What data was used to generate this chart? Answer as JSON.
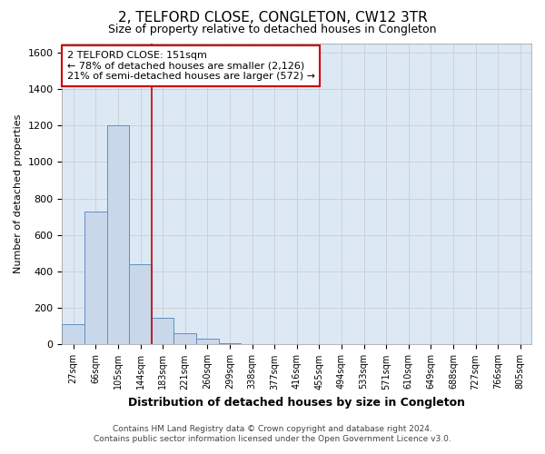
{
  "title": "2, TELFORD CLOSE, CONGLETON, CW12 3TR",
  "subtitle": "Size of property relative to detached houses in Congleton",
  "xlabel": "Distribution of detached houses by size in Congleton",
  "ylabel": "Number of detached properties",
  "footer_line1": "Contains HM Land Registry data © Crown copyright and database right 2024.",
  "footer_line2": "Contains public sector information licensed under the Open Government Licence v3.0.",
  "bin_labels": [
    "27sqm",
    "66sqm",
    "105sqm",
    "144sqm",
    "183sqm",
    "221sqm",
    "260sqm",
    "299sqm",
    "338sqm",
    "377sqm",
    "416sqm",
    "455sqm",
    "494sqm",
    "533sqm",
    "571sqm",
    "610sqm",
    "649sqm",
    "688sqm",
    "727sqm",
    "766sqm",
    "805sqm"
  ],
  "bar_values": [
    110,
    730,
    1200,
    440,
    145,
    60,
    30,
    5,
    0,
    0,
    0,
    0,
    0,
    0,
    0,
    0,
    0,
    0,
    0,
    0,
    0
  ],
  "bar_color": "#c8d8ea",
  "bar_edge_color": "#6090c0",
  "ylim": [
    0,
    1650
  ],
  "yticks": [
    0,
    200,
    400,
    600,
    800,
    1000,
    1200,
    1400,
    1600
  ],
  "vline_x": 3.5,
  "annotation_line1": "2 TELFORD CLOSE: 151sqm",
  "annotation_line2": "← 78% of detached houses are smaller (2,126)",
  "annotation_line3": "21% of semi-detached houses are larger (572) →",
  "annotation_box_color": "#ffffff",
  "annotation_box_edge_color": "#cc0000",
  "vline_color": "#cc0000",
  "grid_color": "#c8c8c8",
  "background_color": "#dce8f4"
}
